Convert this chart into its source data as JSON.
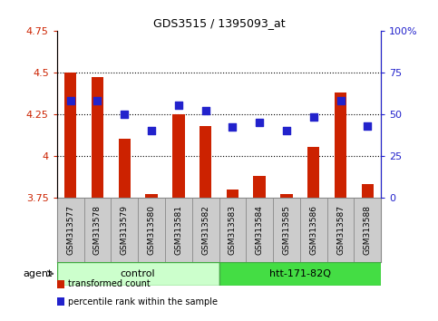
{
  "title": "GDS3515 / 1395093_at",
  "samples": [
    "GSM313577",
    "GSM313578",
    "GSM313579",
    "GSM313580",
    "GSM313581",
    "GSM313582",
    "GSM313583",
    "GSM313584",
    "GSM313585",
    "GSM313586",
    "GSM313587",
    "GSM313588"
  ],
  "transformed_count": [
    4.5,
    4.47,
    4.1,
    3.77,
    4.25,
    4.18,
    3.8,
    3.88,
    3.77,
    4.05,
    4.38,
    3.83
  ],
  "percentile_rank": [
    58,
    58,
    50,
    40,
    55,
    52,
    42,
    45,
    40,
    48,
    58,
    43
  ],
  "ylim_left": [
    3.75,
    4.75
  ],
  "ylim_right": [
    0,
    100
  ],
  "yticks_left": [
    3.75,
    4.0,
    4.25,
    4.5,
    4.75
  ],
  "yticks_right": [
    0,
    25,
    50,
    75,
    100
  ],
  "ytick_labels_left": [
    "3.75",
    "4",
    "4.25",
    "4.5",
    "4.75"
  ],
  "ytick_labels_right": [
    "0",
    "25",
    "50",
    "75",
    "100%"
  ],
  "hgrid_values": [
    4.0,
    4.25,
    4.5
  ],
  "bar_color": "#cc2200",
  "dot_color": "#2222cc",
  "bar_width": 0.45,
  "groups": [
    {
      "label": "control",
      "start": 0,
      "end": 5,
      "color": "#ccffcc",
      "edge": "#44aa44"
    },
    {
      "label": "htt-171-82Q",
      "start": 6,
      "end": 11,
      "color": "#44dd44",
      "edge": "#44aa44"
    }
  ],
  "agent_label": "agent",
  "legend_items": [
    {
      "label": "transformed count",
      "color": "#cc2200"
    },
    {
      "label": "percentile rank within the sample",
      "color": "#2222cc"
    }
  ],
  "left_axis_color": "#cc2200",
  "right_axis_color": "#2222cc",
  "tick_bg_color": "#cccccc",
  "tick_border_color": "#888888",
  "plot_border_color": "#000000"
}
